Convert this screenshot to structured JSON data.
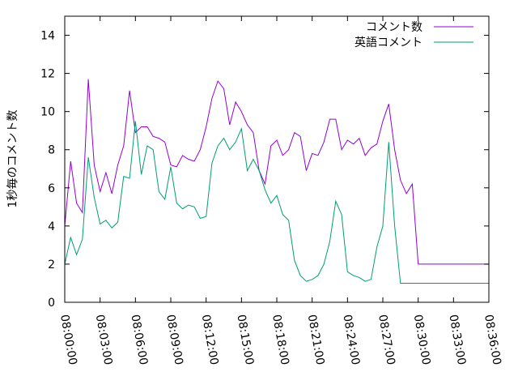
{
  "chart_data": {
    "type": "line",
    "title": "",
    "xlabel": "",
    "ylabel": "1秒毎のコメント数",
    "ylim": [
      0,
      15
    ],
    "yticks": [
      0,
      2,
      4,
      6,
      8,
      10,
      12,
      14
    ],
    "xlim": [
      "08:00:00",
      "08:36:00"
    ],
    "xticks": [
      "08:00:00",
      "08:03:00",
      "08:06:00",
      "08:09:00",
      "08:12:00",
      "08:15:00",
      "08:18:00",
      "08:21:00",
      "08:24:00",
      "08:27:00",
      "08:30:00",
      "08:33:00",
      "08:36:00"
    ],
    "grid": false,
    "legend_position": "top-right",
    "series": [
      {
        "name": "コメント数",
        "color": "#9400d3",
        "x": [
          "08:00:00",
          "08:00:30",
          "08:01:00",
          "08:01:30",
          "08:02:00",
          "08:02:30",
          "08:03:00",
          "08:03:30",
          "08:04:00",
          "08:04:30",
          "08:05:00",
          "08:05:30",
          "08:06:00",
          "08:06:30",
          "08:07:00",
          "08:07:30",
          "08:08:00",
          "08:08:30",
          "08:09:00",
          "08:09:30",
          "08:10:00",
          "08:10:30",
          "08:11:00",
          "08:11:30",
          "08:12:00",
          "08:12:30",
          "08:13:00",
          "08:13:30",
          "08:14:00",
          "08:14:30",
          "08:15:00",
          "08:15:30",
          "08:16:00",
          "08:16:30",
          "08:17:00",
          "08:17:30",
          "08:18:00",
          "08:18:30",
          "08:19:00",
          "08:19:30",
          "08:20:00",
          "08:20:30",
          "08:21:00",
          "08:21:30",
          "08:22:00",
          "08:22:30",
          "08:23:00",
          "08:23:30",
          "08:24:00",
          "08:24:30",
          "08:25:00",
          "08:25:30",
          "08:26:00",
          "08:26:30",
          "08:27:00",
          "08:27:30",
          "08:28:00",
          "08:28:30",
          "08:29:00",
          "08:29:30",
          "08:30:00",
          "08:30:30",
          "08:31:00",
          "08:31:30",
          "08:32:00",
          "08:32:30",
          "08:33:00",
          "08:33:30",
          "08:34:00",
          "08:34:30",
          "08:35:00",
          "08:35:30",
          "08:36:00"
        ],
        "values": [
          4.0,
          7.4,
          5.2,
          4.7,
          11.7,
          7.2,
          5.8,
          6.8,
          5.7,
          7.2,
          8.2,
          11.1,
          8.9,
          9.2,
          9.2,
          8.7,
          8.6,
          8.4,
          7.2,
          7.1,
          7.7,
          7.5,
          7.4,
          8.0,
          9.2,
          10.7,
          11.6,
          11.2,
          9.3,
          10.5,
          10.0,
          9.3,
          8.9,
          6.9,
          6.2,
          8.2,
          8.5,
          7.7,
          8.0,
          8.9,
          8.7,
          6.9,
          7.8,
          7.7,
          8.4,
          9.6,
          9.6,
          8.0,
          8.5,
          8.3,
          8.6,
          7.7,
          8.1,
          8.3,
          9.5,
          10.4,
          8.0,
          6.4,
          5.7,
          6.2,
          2.0,
          2.0,
          2.0,
          2.0,
          2.0,
          2.0,
          2.0,
          2.0,
          2.0,
          2.0,
          2.0,
          2.0,
          2.0
        ],
        "values_trimmed_note": ""
      },
      {
        "name": "英語コメント",
        "color": "#009e73",
        "x": [
          "08:00:00",
          "08:00:30",
          "08:01:00",
          "08:01:30",
          "08:02:00",
          "08:02:30",
          "08:03:00",
          "08:03:30",
          "08:04:00",
          "08:04:30",
          "08:05:00",
          "08:05:30",
          "08:06:00",
          "08:06:30",
          "08:07:00",
          "08:07:30",
          "08:08:00",
          "08:08:30",
          "08:09:00",
          "08:09:30",
          "08:10:00",
          "08:10:30",
          "08:11:00",
          "08:11:30",
          "08:12:00",
          "08:12:30",
          "08:13:00",
          "08:13:30",
          "08:14:00",
          "08:14:30",
          "08:15:00",
          "08:15:30",
          "08:16:00",
          "08:16:30",
          "08:17:00",
          "08:17:30",
          "08:18:00",
          "08:18:30",
          "08:19:00",
          "08:19:30",
          "08:20:00",
          "08:20:30",
          "08:21:00",
          "08:21:30",
          "08:22:00",
          "08:22:30",
          "08:23:00",
          "08:23:30",
          "08:24:00",
          "08:24:30",
          "08:25:00",
          "08:25:30",
          "08:26:00",
          "08:26:30",
          "08:27:00",
          "08:27:30",
          "08:28:00",
          "08:28:30",
          "08:29:00",
          "08:29:30",
          "08:30:00",
          "08:30:30",
          "08:31:00",
          "08:31:30",
          "08:32:00",
          "08:32:30",
          "08:33:00",
          "08:33:30",
          "08:34:00",
          "08:34:30",
          "08:35:00",
          "08:35:30",
          "08:36:00"
        ],
        "values": [
          2.0,
          3.4,
          2.5,
          3.3,
          7.6,
          5.5,
          4.1,
          4.3,
          3.9,
          4.2,
          6.6,
          6.5,
          9.5,
          6.7,
          8.2,
          8.0,
          5.8,
          5.4,
          7.1,
          5.2,
          4.9,
          5.1,
          5.0,
          4.4,
          4.5,
          7.3,
          8.2,
          8.6,
          8.0,
          8.4,
          9.1,
          6.9,
          7.5,
          6.9,
          5.9,
          5.2,
          5.6,
          4.6,
          4.3,
          2.2,
          1.4,
          1.1,
          1.2,
          1.4,
          2.0,
          3.2,
          5.3,
          4.6,
          1.6,
          1.4,
          1.3,
          1.1,
          1.2,
          2.9,
          4.0,
          8.4,
          4.0,
          1.0,
          1.0,
          1.0,
          1.0,
          1.0,
          1.0,
          1.0,
          1.0,
          1.0,
          1.0,
          1.0,
          1.0,
          1.0,
          1.0,
          1.0,
          1.0
        ]
      }
    ]
  }
}
